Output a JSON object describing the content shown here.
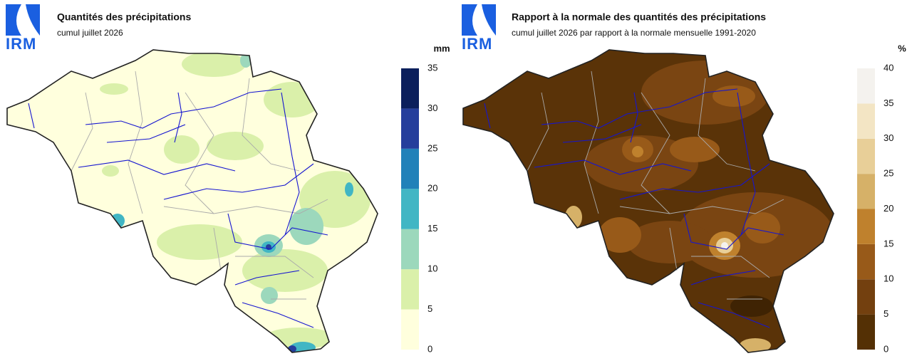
{
  "panels": [
    {
      "logo": "IRM",
      "title": "Quantités des précipitations",
      "subtitle": "cumul juillet 2026",
      "legend": {
        "unit": "mm",
        "ticks": [
          0,
          5,
          10,
          15,
          20,
          25,
          30,
          35
        ],
        "colors": [
          "#ffffdd",
          "#daf0aa",
          "#9cd8bc",
          "#41b6c4",
          "#2181b9",
          "#253e9c",
          "#0b1f5c"
        ]
      }
    },
    {
      "logo": "IRM",
      "title": "Rapport à la normale des quantités des précipitations",
      "subtitle": "cumul juillet 2026 par rapport à la normale mensuelle 1991-2020",
      "legend": {
        "unit": "%",
        "ticks": [
          0,
          5,
          10,
          15,
          20,
          25,
          30,
          35,
          40
        ],
        "colors": [
          "#543005",
          "#73400f",
          "#985a19",
          "#bf812d",
          "#d6b168",
          "#e8cf98",
          "#f3e5c4",
          "#f4f2ee"
        ]
      }
    }
  ]
}
